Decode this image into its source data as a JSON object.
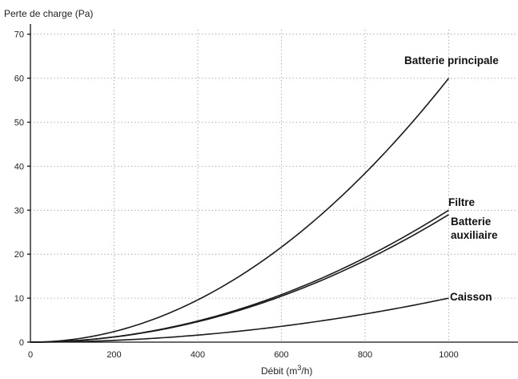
{
  "chart_data": {
    "type": "line",
    "title": "",
    "ylabel": "Perte de charge (Pa)",
    "xlabel_main": "Débit (m",
    "xlabel_sup": "3",
    "xlabel_end": "/h)",
    "xlim": [
      0,
      1160
    ],
    "ylim": [
      0,
      72
    ],
    "x_ticks": [
      0,
      200,
      400,
      600,
      800,
      1000
    ],
    "y_ticks": [
      0,
      10,
      20,
      30,
      40,
      50,
      60,
      70
    ],
    "grid": true,
    "x": [
      0,
      100,
      200,
      300,
      400,
      500,
      600,
      700,
      800,
      900,
      1000
    ],
    "series": [
      {
        "name": "Batterie principale",
        "values": [
          0,
          0.6,
          2.4,
          5.4,
          9.6,
          15.0,
          21.6,
          29.4,
          38.4,
          48.6,
          60.0
        ]
      },
      {
        "name": "Filtre",
        "values": [
          0,
          0.3,
          1.2,
          2.7,
          4.8,
          7.5,
          10.8,
          14.7,
          19.2,
          24.3,
          30.0
        ]
      },
      {
        "name": "Batterie\nauxiliaire",
        "values": [
          0,
          0.29,
          1.16,
          2.61,
          4.64,
          7.25,
          10.44,
          14.21,
          18.56,
          23.49,
          29.0
        ]
      },
      {
        "name": "Caisson",
        "values": [
          0,
          0.1,
          0.4,
          0.9,
          1.6,
          2.5,
          3.6,
          4.9,
          6.4,
          8.1,
          10.0
        ]
      }
    ]
  }
}
